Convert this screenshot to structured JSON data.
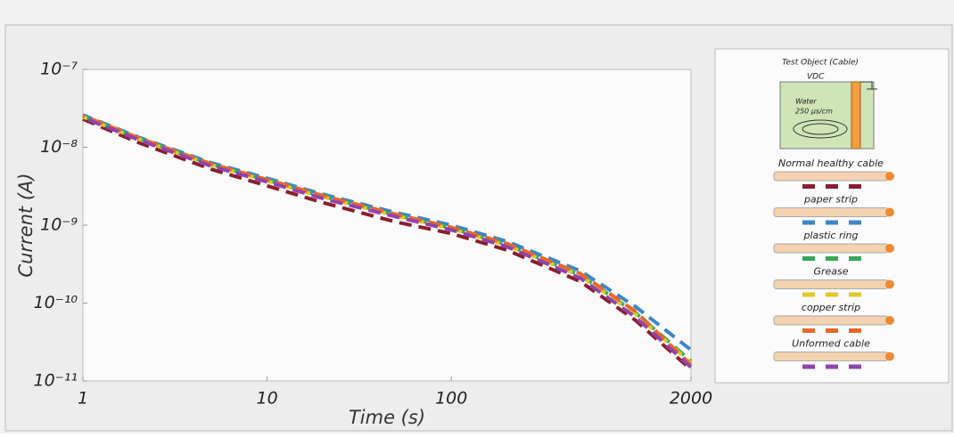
{
  "chart_data": {
    "type": "line",
    "x_label": "Time (s)",
    "y_label": "Current (A)",
    "x": [
      1,
      2,
      5,
      10,
      20,
      50,
      100,
      200,
      500,
      1000,
      2000
    ],
    "series": [
      {
        "name": "Normal healthy cable",
        "color": "#8b1e2e",
        "values": [
          2.3e-08,
          1.15e-08,
          5.2e-09,
          3.2e-09,
          1.95e-09,
          1.1e-09,
          7.8e-10,
          4.8e-10,
          1.9e-10,
          6e-11,
          1.4e-11
        ]
      },
      {
        "name": "paper strip",
        "color": "#3d86c6",
        "values": [
          2.6e-08,
          1.35e-08,
          6.3e-09,
          4e-09,
          2.5e-09,
          1.45e-09,
          1e-09,
          6.2e-10,
          2.6e-10,
          9e-11,
          2.5e-11
        ]
      },
      {
        "name": "plastic ring",
        "color": "#3aa657",
        "values": [
          2.5e-08,
          1.3e-08,
          6e-09,
          3.8e-09,
          2.35e-09,
          1.35e-09,
          9.2e-10,
          5.6e-10,
          2.3e-10,
          7.5e-11,
          1.8e-11
        ]
      },
      {
        "name": "Grease",
        "color": "#e3c829",
        "values": [
          2.45e-08,
          1.28e-08,
          5.9e-09,
          3.7e-09,
          2.3e-09,
          1.32e-09,
          9e-10,
          5.5e-10,
          2.25e-10,
          7.2e-11,
          1.7e-11
        ]
      },
      {
        "name": "copper strip",
        "color": "#e8662a",
        "values": [
          2.55e-08,
          1.32e-08,
          6.1e-09,
          3.85e-09,
          2.4e-09,
          1.38e-09,
          9.4e-10,
          5.8e-10,
          2.4e-10,
          7.8e-11,
          1.6e-11
        ]
      },
      {
        "name": "Unformed cable",
        "color": "#8e44ad",
        "values": [
          2.4e-08,
          1.25e-08,
          5.7e-09,
          3.6e-09,
          2.2e-09,
          1.28e-09,
          8.7e-10,
          5.3e-10,
          2.1e-10,
          6.6e-11,
          1.5e-11
        ]
      }
    ],
    "xlim": [
      1,
      2000
    ],
    "ylim": [
      1e-11,
      1e-07
    ],
    "xticks": [
      1,
      10,
      100,
      2000
    ],
    "yticks": [
      {
        "value": 1e-11,
        "label": "10⁻¹¹"
      },
      {
        "value": 1e-10,
        "label": "10⁻¹⁰"
      },
      {
        "value": 1e-09,
        "label": "10⁻⁹"
      },
      {
        "value": 1e-08,
        "label": "10⁻⁸"
      },
      {
        "value": 1e-07,
        "label": "10⁻⁷"
      }
    ],
    "log_x": true,
    "log_y": true,
    "legend": "right",
    "inset": {
      "title": "Test Object (Cable)",
      "voltage": "VDC",
      "medium": "Water",
      "conductivity": "250 µs/cm"
    }
  }
}
